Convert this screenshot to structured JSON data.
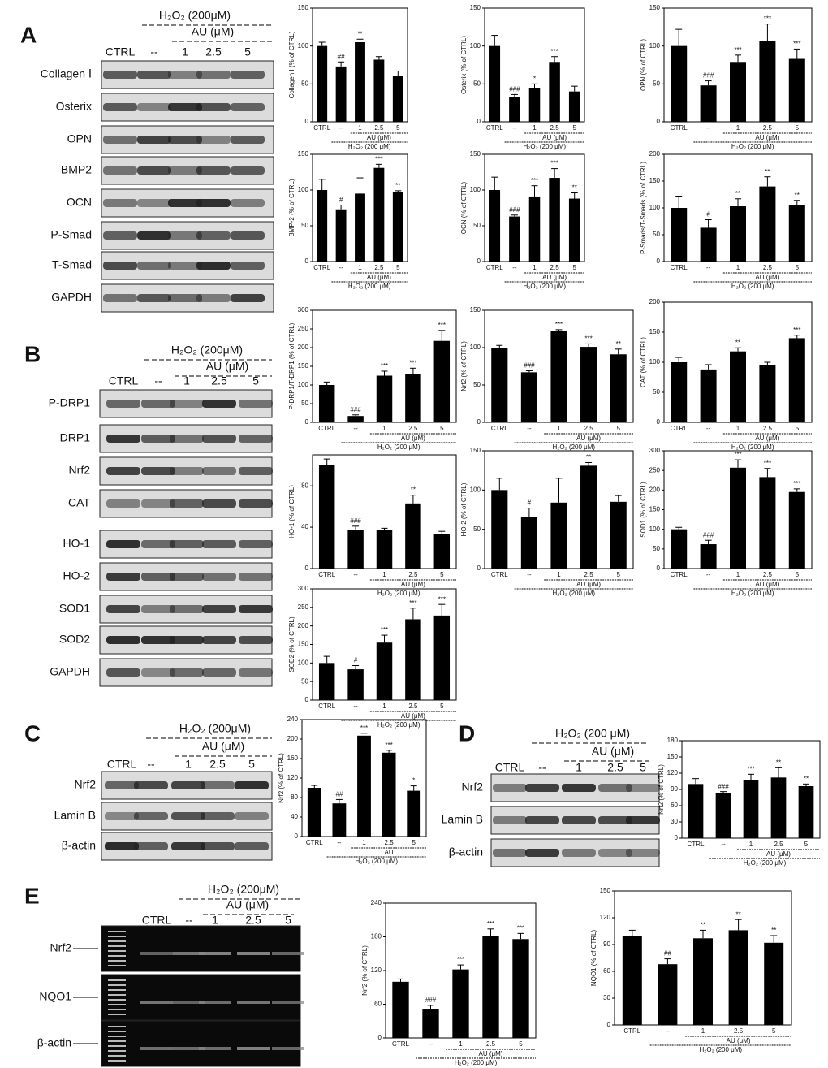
{
  "panels": [
    {
      "letter": "A",
      "treatment": "H₂O₂ (200μM)",
      "au": "AU (μM)",
      "lanes": [
        "CTRL",
        "--",
        "1",
        "2.5",
        "5"
      ],
      "rows": [
        "Collagen Ⅰ",
        "Osterix",
        "OPN",
        "BMP2",
        "OCN",
        "P-Smad",
        "T-Smad",
        "GAPDH"
      ]
    },
    {
      "letter": "B",
      "treatment": "H₂O₂ (200μM)",
      "au": "AU (μM)",
      "lanes": [
        "CTRL",
        "--",
        "1",
        "2.5",
        "5"
      ],
      "rows": [
        "P-DRP1",
        "DRP1",
        "Nrf2",
        "CAT",
        "HO-1",
        "HO-2",
        "SOD1",
        "SOD2",
        "GAPDH"
      ]
    },
    {
      "letter": "C",
      "treatment": "H₂O₂ (200μM)",
      "au": "AU (μM)",
      "lanes": [
        "CTRL",
        "--",
        "1",
        "2.5",
        "5"
      ],
      "rows": [
        "Nrf2",
        "Lamin B",
        "β-actin"
      ]
    },
    {
      "letter": "D",
      "treatment": "H₂O₂ (200 μM)",
      "au": "AU (μM)",
      "lanes": [
        "CTRL",
        "--",
        "1",
        "2.5",
        "5"
      ],
      "rows": [
        "Nrf2",
        "Lamin B",
        "β-actin"
      ]
    },
    {
      "letter": "E",
      "treatment": "H₂O₂ (200μM)",
      "au": "AU (μM)",
      "lanes": [
        "CTRL",
        "--",
        "1",
        "2.5",
        "5"
      ],
      "rows": [
        "Nrf2",
        "NQO1",
        "β-actin"
      ]
    }
  ],
  "chart_data": [
    {
      "type": "bar",
      "ylabel": "Collagen Ⅰ (% of CTRL)",
      "categories": [
        "CTRL",
        "--",
        "1",
        "2.5",
        "5"
      ],
      "values": [
        100,
        73,
        105,
        82,
        60
      ],
      "errors": [
        5,
        6,
        4,
        4,
        7
      ],
      "annotations": [
        null,
        "##",
        "**",
        null,
        null
      ],
      "ylim": [
        0,
        150
      ],
      "yticks": [
        0,
        50,
        100,
        150
      ],
      "group": "AU (μM)",
      "treatment": "H₂O₂ (200 μM)",
      "color": "#000000"
    },
    {
      "type": "bar",
      "ylabel": "Osterix (% of CTRL)",
      "categories": [
        "CTRL",
        "--",
        "1",
        "2.5",
        "5"
      ],
      "values": [
        100,
        33,
        45,
        79,
        40
      ],
      "errors": [
        14,
        3,
        5,
        7,
        7
      ],
      "annotations": [
        null,
        "###",
        "*",
        "***",
        null
      ],
      "ylim": [
        0,
        150
      ],
      "yticks": [
        0,
        50,
        100,
        150
      ],
      "group": "AU (μM)",
      "treatment": "H₂O₂ (200 μM)",
      "color": "#000000"
    },
    {
      "type": "bar",
      "ylabel": "OPN (% of CTRL)",
      "categories": [
        "CTRL",
        "--",
        "1",
        "2.5",
        "5"
      ],
      "values": [
        100,
        48,
        79,
        107,
        83
      ],
      "errors": [
        22,
        6,
        9,
        22,
        13
      ],
      "annotations": [
        null,
        "###",
        "***",
        "***",
        "***"
      ],
      "ylim": [
        0,
        150
      ],
      "yticks": [
        0,
        50,
        100,
        150
      ],
      "group": "AU (μM)",
      "treatment": "H₂O₂ (200 μM)",
      "color": "#000000"
    },
    {
      "type": "bar",
      "ylabel": "BMP-2 (% of CTRL)",
      "categories": [
        "CTRL",
        "--",
        "1",
        "2.5",
        "5"
      ],
      "values": [
        100,
        73,
        95,
        131,
        97
      ],
      "errors": [
        15,
        6,
        22,
        5,
        2
      ],
      "annotations": [
        null,
        "#",
        null,
        "***",
        "**"
      ],
      "ylim": [
        0,
        150
      ],
      "yticks": [
        0,
        50,
        100,
        150
      ],
      "group": "AU (μM)",
      "treatment": "H₂O₂ (200 μM)",
      "color": "#000000"
    },
    {
      "type": "bar",
      "ylabel": "OCN (% of CTRL)",
      "categories": [
        "CTRL",
        "--",
        "1",
        "2.5",
        "5"
      ],
      "values": [
        100,
        63,
        91,
        117,
        88
      ],
      "errors": [
        18,
        2,
        15,
        13,
        8
      ],
      "annotations": [
        null,
        "###",
        "***",
        "***",
        "**"
      ],
      "ylim": [
        0,
        150
      ],
      "yticks": [
        0,
        50,
        100,
        150
      ],
      "group": "AU (μM)",
      "treatment": "H₂O₂ (200 μM)",
      "color": "#000000"
    },
    {
      "type": "bar",
      "ylabel": "P-Smads/T-Smads (% of CTRL)",
      "categories": [
        "CTRL",
        "--",
        "1",
        "2.5",
        "5"
      ],
      "values": [
        100,
        63,
        103,
        140,
        106
      ],
      "errors": [
        22,
        15,
        14,
        18,
        8
      ],
      "annotations": [
        null,
        "#",
        "**",
        "**",
        "**"
      ],
      "ylim": [
        0,
        200
      ],
      "yticks": [
        0,
        50,
        100,
        150,
        200
      ],
      "group": "AU (μM)",
      "treatment": "H₂O₂ (200 μM)",
      "color": "#000000"
    },
    {
      "type": "bar",
      "ylabel": "P-DRP1/T-DRP1 (% of CTRL)",
      "categories": [
        "CTRL",
        "--",
        "1",
        "2.5",
        "5"
      ],
      "values": [
        100,
        17,
        125,
        130,
        218
      ],
      "errors": [
        8,
        3,
        12,
        15,
        28
      ],
      "annotations": [
        null,
        "###",
        "***",
        "***",
        "***"
      ],
      "ylim": [
        0,
        300
      ],
      "yticks": [
        0,
        50,
        100,
        150,
        200,
        250,
        300
      ],
      "group": "AU (μM)",
      "treatment": "H₂O₂ (200 μM)",
      "color": "#000000"
    },
    {
      "type": "bar",
      "ylabel": "Nrf2 (% of CTRL)",
      "categories": [
        "CTRL",
        "--",
        "1",
        "2.5",
        "5"
      ],
      "values": [
        100,
        67,
        122,
        101,
        91
      ],
      "errors": [
        3,
        2,
        2,
        4,
        7
      ],
      "annotations": [
        null,
        "###",
        "***",
        "***",
        "**"
      ],
      "ylim": [
        0,
        150
      ],
      "yticks": [
        0,
        50,
        100,
        150
      ],
      "group": "AU (μM)",
      "treatment": "H₂O₂ (200 μM)",
      "color": "#000000"
    },
    {
      "type": "bar",
      "ylabel": "CAT (% of CTRL)",
      "categories": [
        "CTRL",
        "--",
        "1",
        "2.5",
        "5"
      ],
      "values": [
        100,
        88,
        118,
        95,
        140
      ],
      "errors": [
        8,
        8,
        6,
        5,
        5
      ],
      "annotations": [
        null,
        null,
        "**",
        null,
        "***"
      ],
      "ylim": [
        0,
        200
      ],
      "yticks": [
        0,
        50,
        100,
        150,
        200
      ],
      "group": "AU (μM)",
      "treatment": "H₂O₂ (200 μM)",
      "color": "#000000"
    },
    {
      "type": "bar",
      "ylabel": "HO-1 (% of CTRL)",
      "categories": [
        "CTRL",
        "--",
        "1",
        "2.5",
        "5"
      ],
      "values": [
        100,
        37,
        37,
        63,
        33
      ],
      "errors": [
        6,
        4,
        2,
        8,
        3
      ],
      "annotations": [
        null,
        "###",
        null,
        "**",
        null
      ],
      "ylim": [
        0,
        110
      ],
      "yticks": [
        0,
        40,
        80
      ],
      "group": "AU (μM)",
      "treatment": "H₂O₂ (200 μM)",
      "color": "#000000"
    },
    {
      "type": "bar",
      "ylabel": "HO-2 (% of CTRL)",
      "categories": [
        "CTRL",
        "--",
        "1",
        "2.5",
        "5"
      ],
      "values": [
        100,
        66,
        84,
        131,
        85
      ],
      "errors": [
        15,
        11,
        31,
        4,
        8
      ],
      "annotations": [
        null,
        "#",
        null,
        "**",
        null
      ],
      "ylim": [
        0,
        150
      ],
      "yticks": [
        0,
        50,
        100,
        150
      ],
      "group": "AU (μM)",
      "treatment": "H₂O₂ (200 μM)",
      "color": "#000000"
    },
    {
      "type": "bar",
      "ylabel": "SOD1 (% of CTRL)",
      "categories": [
        "CTRL",
        "--",
        "1",
        "2.5",
        "5"
      ],
      "values": [
        100,
        62,
        257,
        233,
        195
      ],
      "errors": [
        5,
        10,
        20,
        22,
        8
      ],
      "annotations": [
        null,
        "###",
        "***",
        "***",
        "***"
      ],
      "ylim": [
        0,
        300
      ],
      "yticks": [
        0,
        50,
        100,
        150,
        200,
        250,
        300
      ],
      "group": "AU (μM)",
      "treatment": "H₂O₂ (200 μM)",
      "color": "#000000"
    },
    {
      "type": "bar",
      "ylabel": "SOD2 (% of CTRL)",
      "categories": [
        "CTRL",
        "--",
        "1",
        "2.5",
        "5"
      ],
      "values": [
        100,
        83,
        155,
        218,
        228
      ],
      "errors": [
        18,
        10,
        20,
        30,
        30
      ],
      "annotations": [
        null,
        "#",
        "***",
        "***",
        "***"
      ],
      "ylim": [
        0,
        300
      ],
      "yticks": [
        0,
        50,
        100,
        150,
        200,
        250,
        300
      ],
      "group": "AU (μM)",
      "treatment": "H₂O₂ (200 μM)",
      "color": "#000000"
    },
    {
      "type": "bar",
      "ylabel": "Nrf2 (% of CTRL)",
      "categories": [
        "CTRL",
        "--",
        "1",
        "2.5",
        "5"
      ],
      "values": [
        100,
        68,
        207,
        172,
        94
      ],
      "errors": [
        5,
        8,
        5,
        5,
        10
      ],
      "annotations": [
        null,
        "##",
        "***",
        "***",
        "*"
      ],
      "ylim": [
        0,
        240
      ],
      "yticks": [
        0,
        40,
        80,
        120,
        160,
        200,
        240
      ],
      "group": "AU",
      "treatment": "H₂O₂ (200 μM)",
      "color": "#000000"
    },
    {
      "type": "bar",
      "ylabel": "Nrf2 (% of CTRL)",
      "categories": [
        "CTRL",
        "--",
        "1",
        "2.5",
        "5"
      ],
      "values": [
        100,
        84,
        108,
        112,
        96
      ],
      "errors": [
        10,
        2,
        10,
        18,
        4
      ],
      "annotations": [
        null,
        "###",
        "***",
        "**",
        "**"
      ],
      "ylim": [
        0,
        180
      ],
      "yticks": [
        0,
        30,
        60,
        90,
        120,
        150,
        180
      ],
      "group": "AU (μM)",
      "treatment": "H₂O₂ (200 μM)",
      "color": "#000000"
    },
    {
      "type": "bar",
      "ylabel": "Nrf2 (% of CTRL)",
      "categories": [
        "CTRL",
        "--",
        "1",
        "2.5",
        "5"
      ],
      "values": [
        100,
        52,
        122,
        182,
        176
      ],
      "errors": [
        5,
        6,
        8,
        12,
        10
      ],
      "annotations": [
        null,
        "###",
        "***",
        "***",
        "***"
      ],
      "ylim": [
        0,
        240
      ],
      "yticks": [
        0,
        60,
        120,
        180,
        240
      ],
      "group": "AU (μM)",
      "treatment": "H₂O₂ (200 μM)",
      "color": "#000000"
    },
    {
      "type": "bar",
      "ylabel": "NQO1 (% of CTRL)",
      "categories": [
        "CTRL",
        "--",
        "1",
        "2.5",
        "5"
      ],
      "values": [
        100,
        68,
        97,
        106,
        92
      ],
      "errors": [
        6,
        6,
        9,
        12,
        8
      ],
      "annotations": [
        null,
        "##",
        "**",
        "**",
        "**"
      ],
      "ylim": [
        0,
        150
      ],
      "yticks": [
        0,
        30,
        60,
        90,
        120,
        150
      ],
      "group": "AU (μM)",
      "treatment": "H₂O₂ (200 μM)",
      "color": "#000000"
    }
  ]
}
